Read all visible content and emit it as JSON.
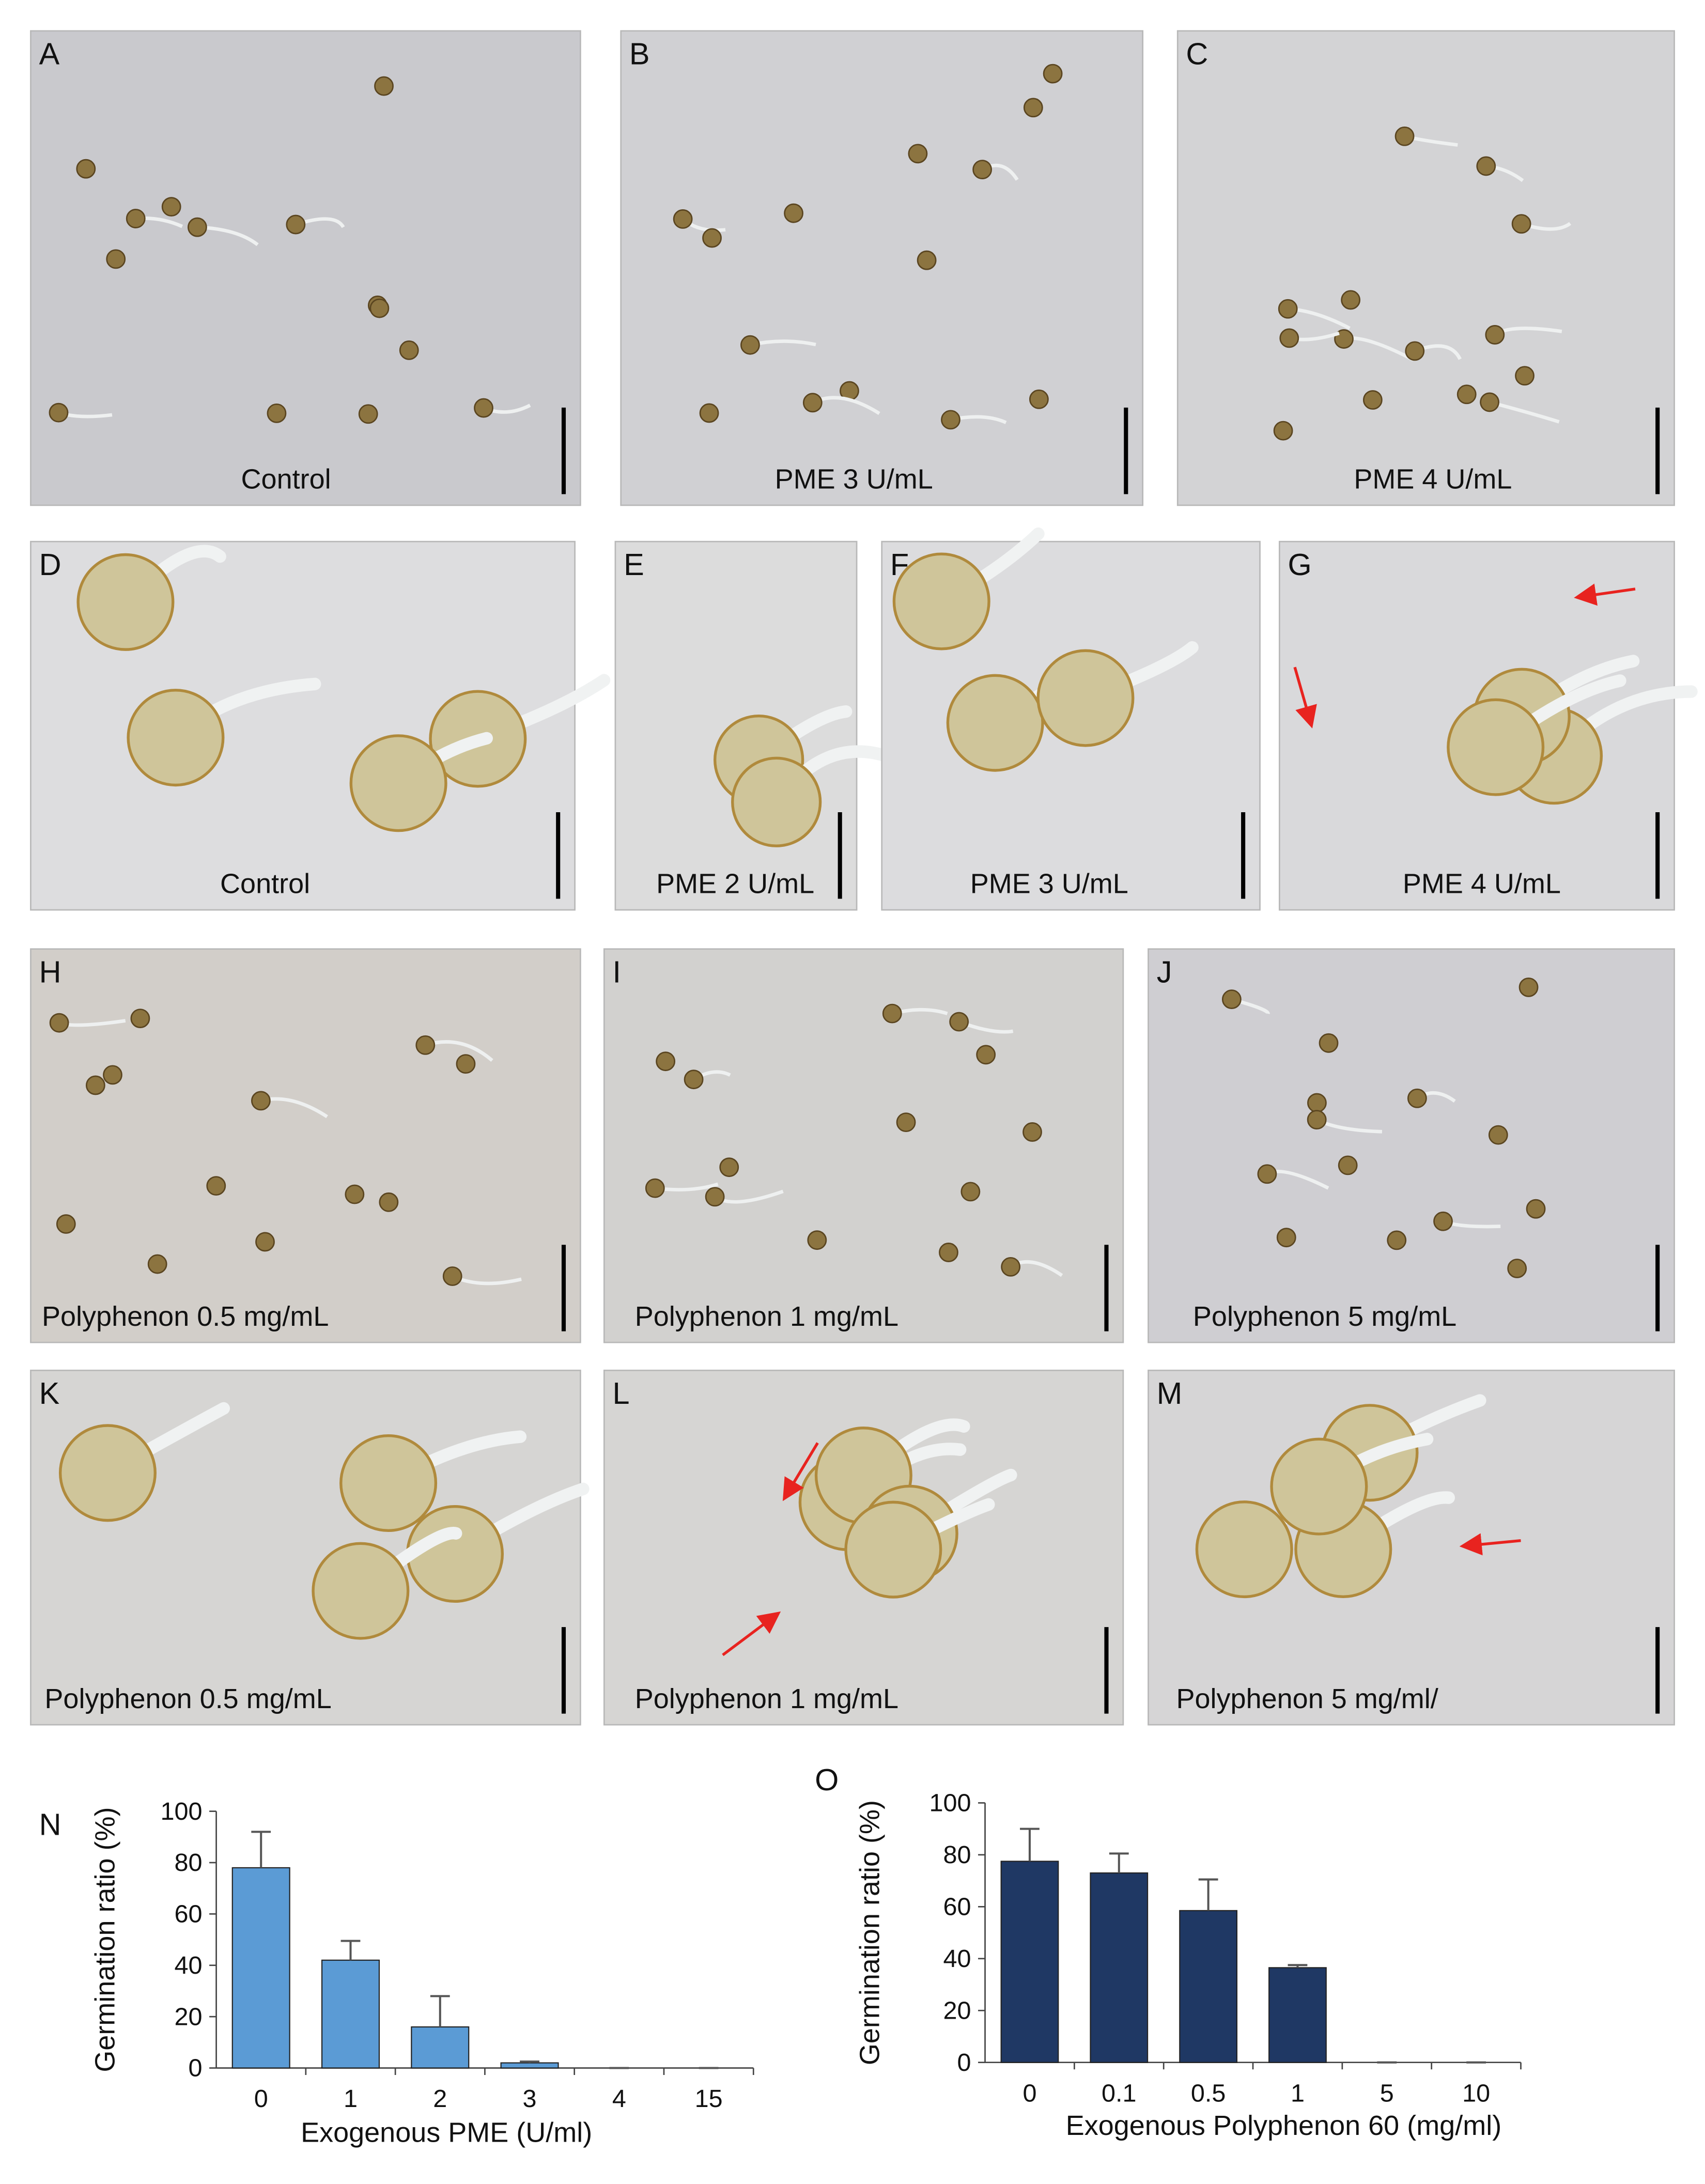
{
  "panels": [
    {
      "letter": "A",
      "caption": "Control"
    },
    {
      "letter": "B",
      "caption": "PME 3 U/mL"
    },
    {
      "letter": "C",
      "caption": "PME 4 U/mL"
    },
    {
      "letter": "D",
      "caption": "Control"
    },
    {
      "letter": "E",
      "caption": "PME 2 U/mL"
    },
    {
      "letter": "F",
      "caption": "PME 3 U/mL"
    },
    {
      "letter": "G",
      "caption": "PME 4 U/mL"
    },
    {
      "letter": "H",
      "caption": "Polyphenon  0.5 mg/mL"
    },
    {
      "letter": "I",
      "caption": "Polyphenon  1 mg/mL"
    },
    {
      "letter": "J",
      "caption": "Polyphenon  5 mg/mL"
    },
    {
      "letter": "K",
      "caption": "Polyphenon  0.5 mg/mL"
    },
    {
      "letter": "L",
      "caption": "Polyphenon  1 mg/mL"
    },
    {
      "letter": "M",
      "caption": "Polyphenon  5 mg/ml/"
    }
  ],
  "chart_data": [
    {
      "type": "bar",
      "label": "N",
      "y_label": "Germination ratio (%)",
      "x_label": "Exogenous PME (U/ml)",
      "categories": [
        "0",
        "1",
        "2",
        "3",
        "4",
        "15"
      ],
      "values": [
        78,
        42,
        16,
        2,
        0,
        0
      ],
      "errors": [
        14,
        7.5,
        12,
        0.5,
        0,
        0
      ],
      "color": "#5b9bd5",
      "ylim": [
        0,
        100
      ],
      "yticks": [
        0,
        20,
        40,
        60,
        80,
        100
      ],
      "grid": false
    },
    {
      "type": "bar",
      "label": "O",
      "y_label": "Germination ratio (%)",
      "x_label": "Exogenous  Polyphenon 60 (mg/ml)",
      "categories": [
        "0",
        "0.1",
        "0.5",
        "1",
        "5",
        "10"
      ],
      "values": [
        77.5,
        73,
        58.5,
        36.5,
        0,
        0
      ],
      "errors": [
        12.5,
        7.5,
        12,
        1,
        0,
        0
      ],
      "color": "#1f3864",
      "ylim": [
        0,
        100
      ],
      "yticks": [
        0,
        20,
        40,
        60,
        80,
        100
      ],
      "grid": false
    }
  ]
}
